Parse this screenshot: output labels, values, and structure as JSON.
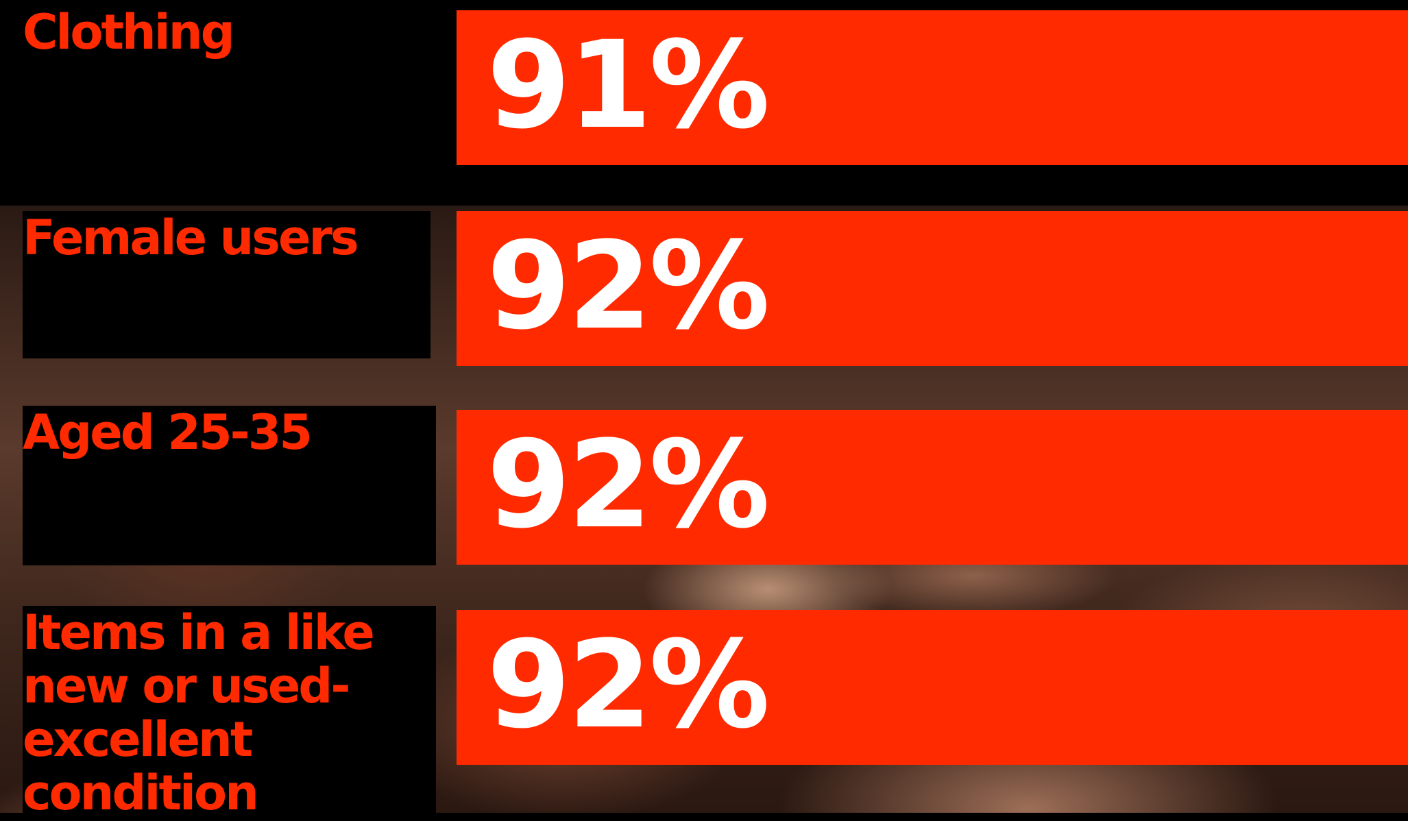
{
  "stats": [
    {
      "label_lines": [
        "Clothing"
      ],
      "value": "91%"
    },
    {
      "label_lines": [
        "Female users"
      ],
      "value": "92%"
    },
    {
      "label_lines": [
        "Aged 25-35"
      ],
      "value": "92%"
    },
    {
      "label_lines": [
        "Items in a like",
        "new or used-",
        "excellent",
        "condition"
      ],
      "value": "92%"
    }
  ],
  "colors": {
    "accent": "#ff2a00",
    "label_background": "#000000",
    "value_text": "#ffffff"
  }
}
